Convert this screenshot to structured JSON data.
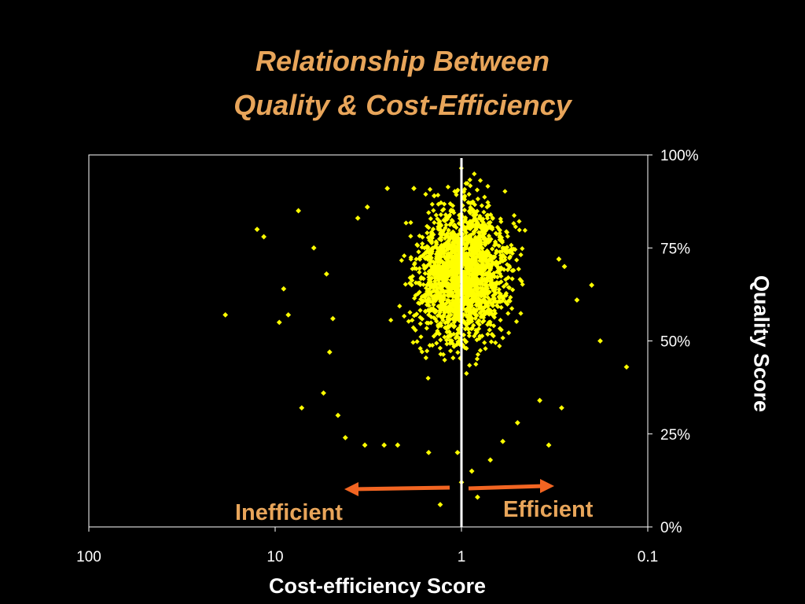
{
  "colors": {
    "background": "#000000",
    "title": "#e8a55a",
    "points": "#ffff00",
    "arrows": "#f26522",
    "divider": "#ffffff",
    "annotation": "#e8a55a"
  },
  "chart_data": {
    "type": "scatter",
    "title_lines": [
      "Relationship Between",
      "Quality & Cost-Efficiency"
    ],
    "xlabel": "Cost-efficiency Score",
    "ylabel": "Quality Score",
    "x_scale": "log",
    "x_reversed": true,
    "xlim": [
      100,
      0.1
    ],
    "ylim": [
      0,
      100
    ],
    "x_ticks": [
      "100",
      "10",
      "1",
      "0.1"
    ],
    "x_tick_values": [
      100,
      10,
      1,
      0.1
    ],
    "y_ticks": [
      "0%",
      "25%",
      "50%",
      "75%",
      "100%"
    ],
    "y_tick_values": [
      0,
      25,
      50,
      75,
      100
    ],
    "y_axis_position": "right",
    "grid": false,
    "reference_line": {
      "x": 1
    },
    "annotations": {
      "left": "Inefficient",
      "right": "Efficient"
    },
    "point_summary": {
      "center_x": 1.0,
      "center_y": 68,
      "count_estimate": 2000
    },
    "series": [
      {
        "points": [
          [
            18.5,
            57
          ],
          [
            12.5,
            80
          ],
          [
            11.5,
            78
          ],
          [
            7.5,
            85
          ],
          [
            9,
            64
          ],
          [
            8.5,
            57
          ],
          [
            9.5,
            55
          ],
          [
            6.2,
            75
          ],
          [
            5.3,
            68
          ],
          [
            4.9,
            56
          ],
          [
            5.1,
            47
          ],
          [
            4.6,
            30
          ],
          [
            5.5,
            36
          ],
          [
            7.2,
            32
          ],
          [
            3.6,
            83
          ],
          [
            3.2,
            86
          ],
          [
            2.5,
            91
          ],
          [
            1.8,
            91
          ],
          [
            1.4,
            89
          ],
          [
            4.2,
            24
          ],
          [
            3.3,
            22
          ],
          [
            2.6,
            22
          ],
          [
            2.2,
            22
          ],
          [
            1.5,
            20
          ],
          [
            1.3,
            6
          ],
          [
            0.6,
            23
          ],
          [
            0.5,
            28
          ],
          [
            0.38,
            34
          ],
          [
            0.34,
            22
          ],
          [
            0.29,
            32
          ],
          [
            0.24,
            61
          ],
          [
            0.2,
            65
          ],
          [
            0.18,
            50
          ],
          [
            0.13,
            43
          ],
          [
            0.28,
            70
          ],
          [
            0.3,
            72
          ],
          [
            1.0,
            12
          ],
          [
            0.88,
            15
          ],
          [
            0.82,
            8
          ],
          [
            0.7,
            18
          ],
          [
            1.05,
            20
          ]
        ]
      }
    ]
  }
}
